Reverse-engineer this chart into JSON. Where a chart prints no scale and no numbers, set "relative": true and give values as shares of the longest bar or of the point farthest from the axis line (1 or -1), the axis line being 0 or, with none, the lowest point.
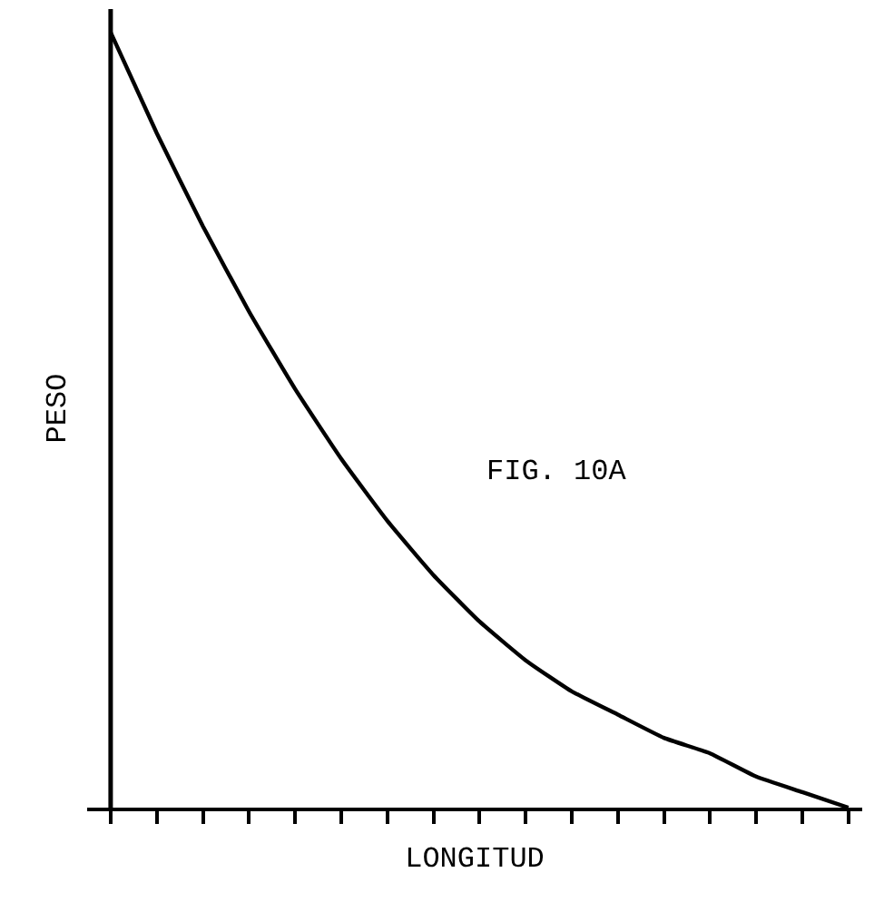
{
  "chart_data": {
    "type": "line",
    "relative": true,
    "xlabel": "LONGITUD",
    "ylabel": "PESO",
    "annotations": [
      "FIG. 10A"
    ],
    "categories": [
      null,
      null,
      null,
      null,
      null,
      null,
      null,
      null,
      null,
      null,
      null,
      null,
      null,
      null,
      null,
      null,
      null
    ],
    "series": [
      {
        "color": "#000000",
        "values": [
          1.0,
          0.87,
          0.75,
          0.64,
          0.54,
          0.45,
          0.37,
          0.3,
          0.24,
          0.19,
          0.15,
          0.12,
          0.09,
          0.07,
          0.04,
          0.02,
          0.0
        ]
      }
    ],
    "marker": "none",
    "line_style": "solid"
  }
}
